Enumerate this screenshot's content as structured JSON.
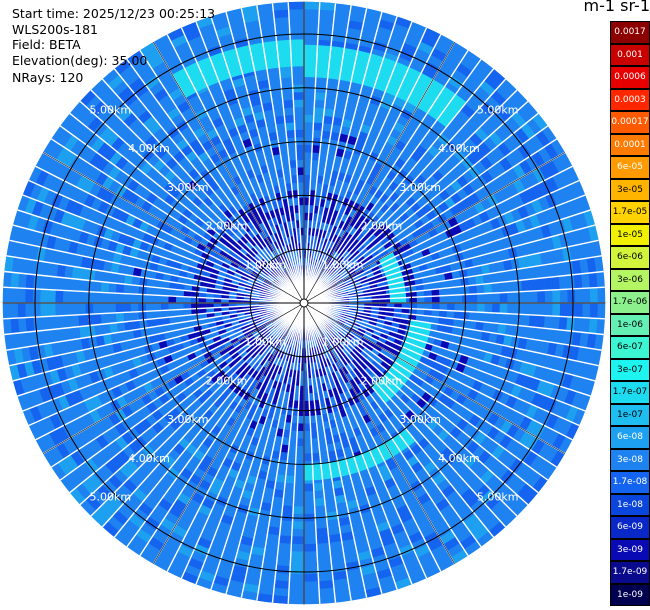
{
  "header": {
    "start_time": "Start time: 2025/12/23 00:25:13",
    "instrument": "WLS200s-181",
    "field": "Field: BETA",
    "elevation": "Elevation(deg): 35.00",
    "nrays": "NRays: 120"
  },
  "colorbar": {
    "unit_label": "m-1 sr-1",
    "levels": [
      {
        "label": "0.0017",
        "color": "#8c0000"
      },
      {
        "label": "0.001",
        "color": "#c80000"
      },
      {
        "label": "0.0006",
        "color": "#e60000"
      },
      {
        "label": "0.0003",
        "color": "#ff2600"
      },
      {
        "label": "0.00017",
        "color": "#ff5a00"
      },
      {
        "label": "0.0001",
        "color": "#ff7a00"
      },
      {
        "label": "6e-05",
        "color": "#ff9a00"
      },
      {
        "label": "3e-05",
        "color": "#ffb400"
      },
      {
        "label": "1.7e-05",
        "color": "#ffd200"
      },
      {
        "label": "1e-05",
        "color": "#f0f000"
      },
      {
        "label": "6e-06",
        "color": "#d2f53c"
      },
      {
        "label": "3e-06",
        "color": "#b4f564"
      },
      {
        "label": "1.7e-06",
        "color": "#8cf08c"
      },
      {
        "label": "1e-06",
        "color": "#64f0b4"
      },
      {
        "label": "6e-07",
        "color": "#3cf5d2"
      },
      {
        "label": "3e-07",
        "color": "#1ef5f0"
      },
      {
        "label": "1.7e-07",
        "color": "#1edcf0"
      },
      {
        "label": "1e-07",
        "color": "#1ebef0"
      },
      {
        "label": "6e-08",
        "color": "#1ea0f0"
      },
      {
        "label": "3e-08",
        "color": "#1e82f0"
      },
      {
        "label": "1.7e-08",
        "color": "#1464f0"
      },
      {
        "label": "1e-08",
        "color": "#0a46dc"
      },
      {
        "label": "6e-09",
        "color": "#0a28c8"
      },
      {
        "label": "3e-09",
        "color": "#0a0ab4"
      },
      {
        "label": "1.7e-09",
        "color": "#0a0a8c"
      },
      {
        "label": "1e-09",
        "color": "#000050"
      }
    ]
  },
  "chart_data": {
    "type": "heatmap",
    "projection": "polar",
    "nrays": 120,
    "range_rings_km": [
      1,
      2,
      3,
      4,
      5
    ],
    "range_ring_labels": [
      "1.00km",
      "2.00km",
      "3.00km",
      "4.00km",
      "5.00km"
    ],
    "max_range_km": 5.6,
    "crosshair_spokes": 4,
    "dominant_level": "3e-08",
    "background_level": "1.7e-08",
    "inner_level": "3e-09",
    "feature_levels": [
      "1.7e-07",
      "6e-08"
    ]
  }
}
